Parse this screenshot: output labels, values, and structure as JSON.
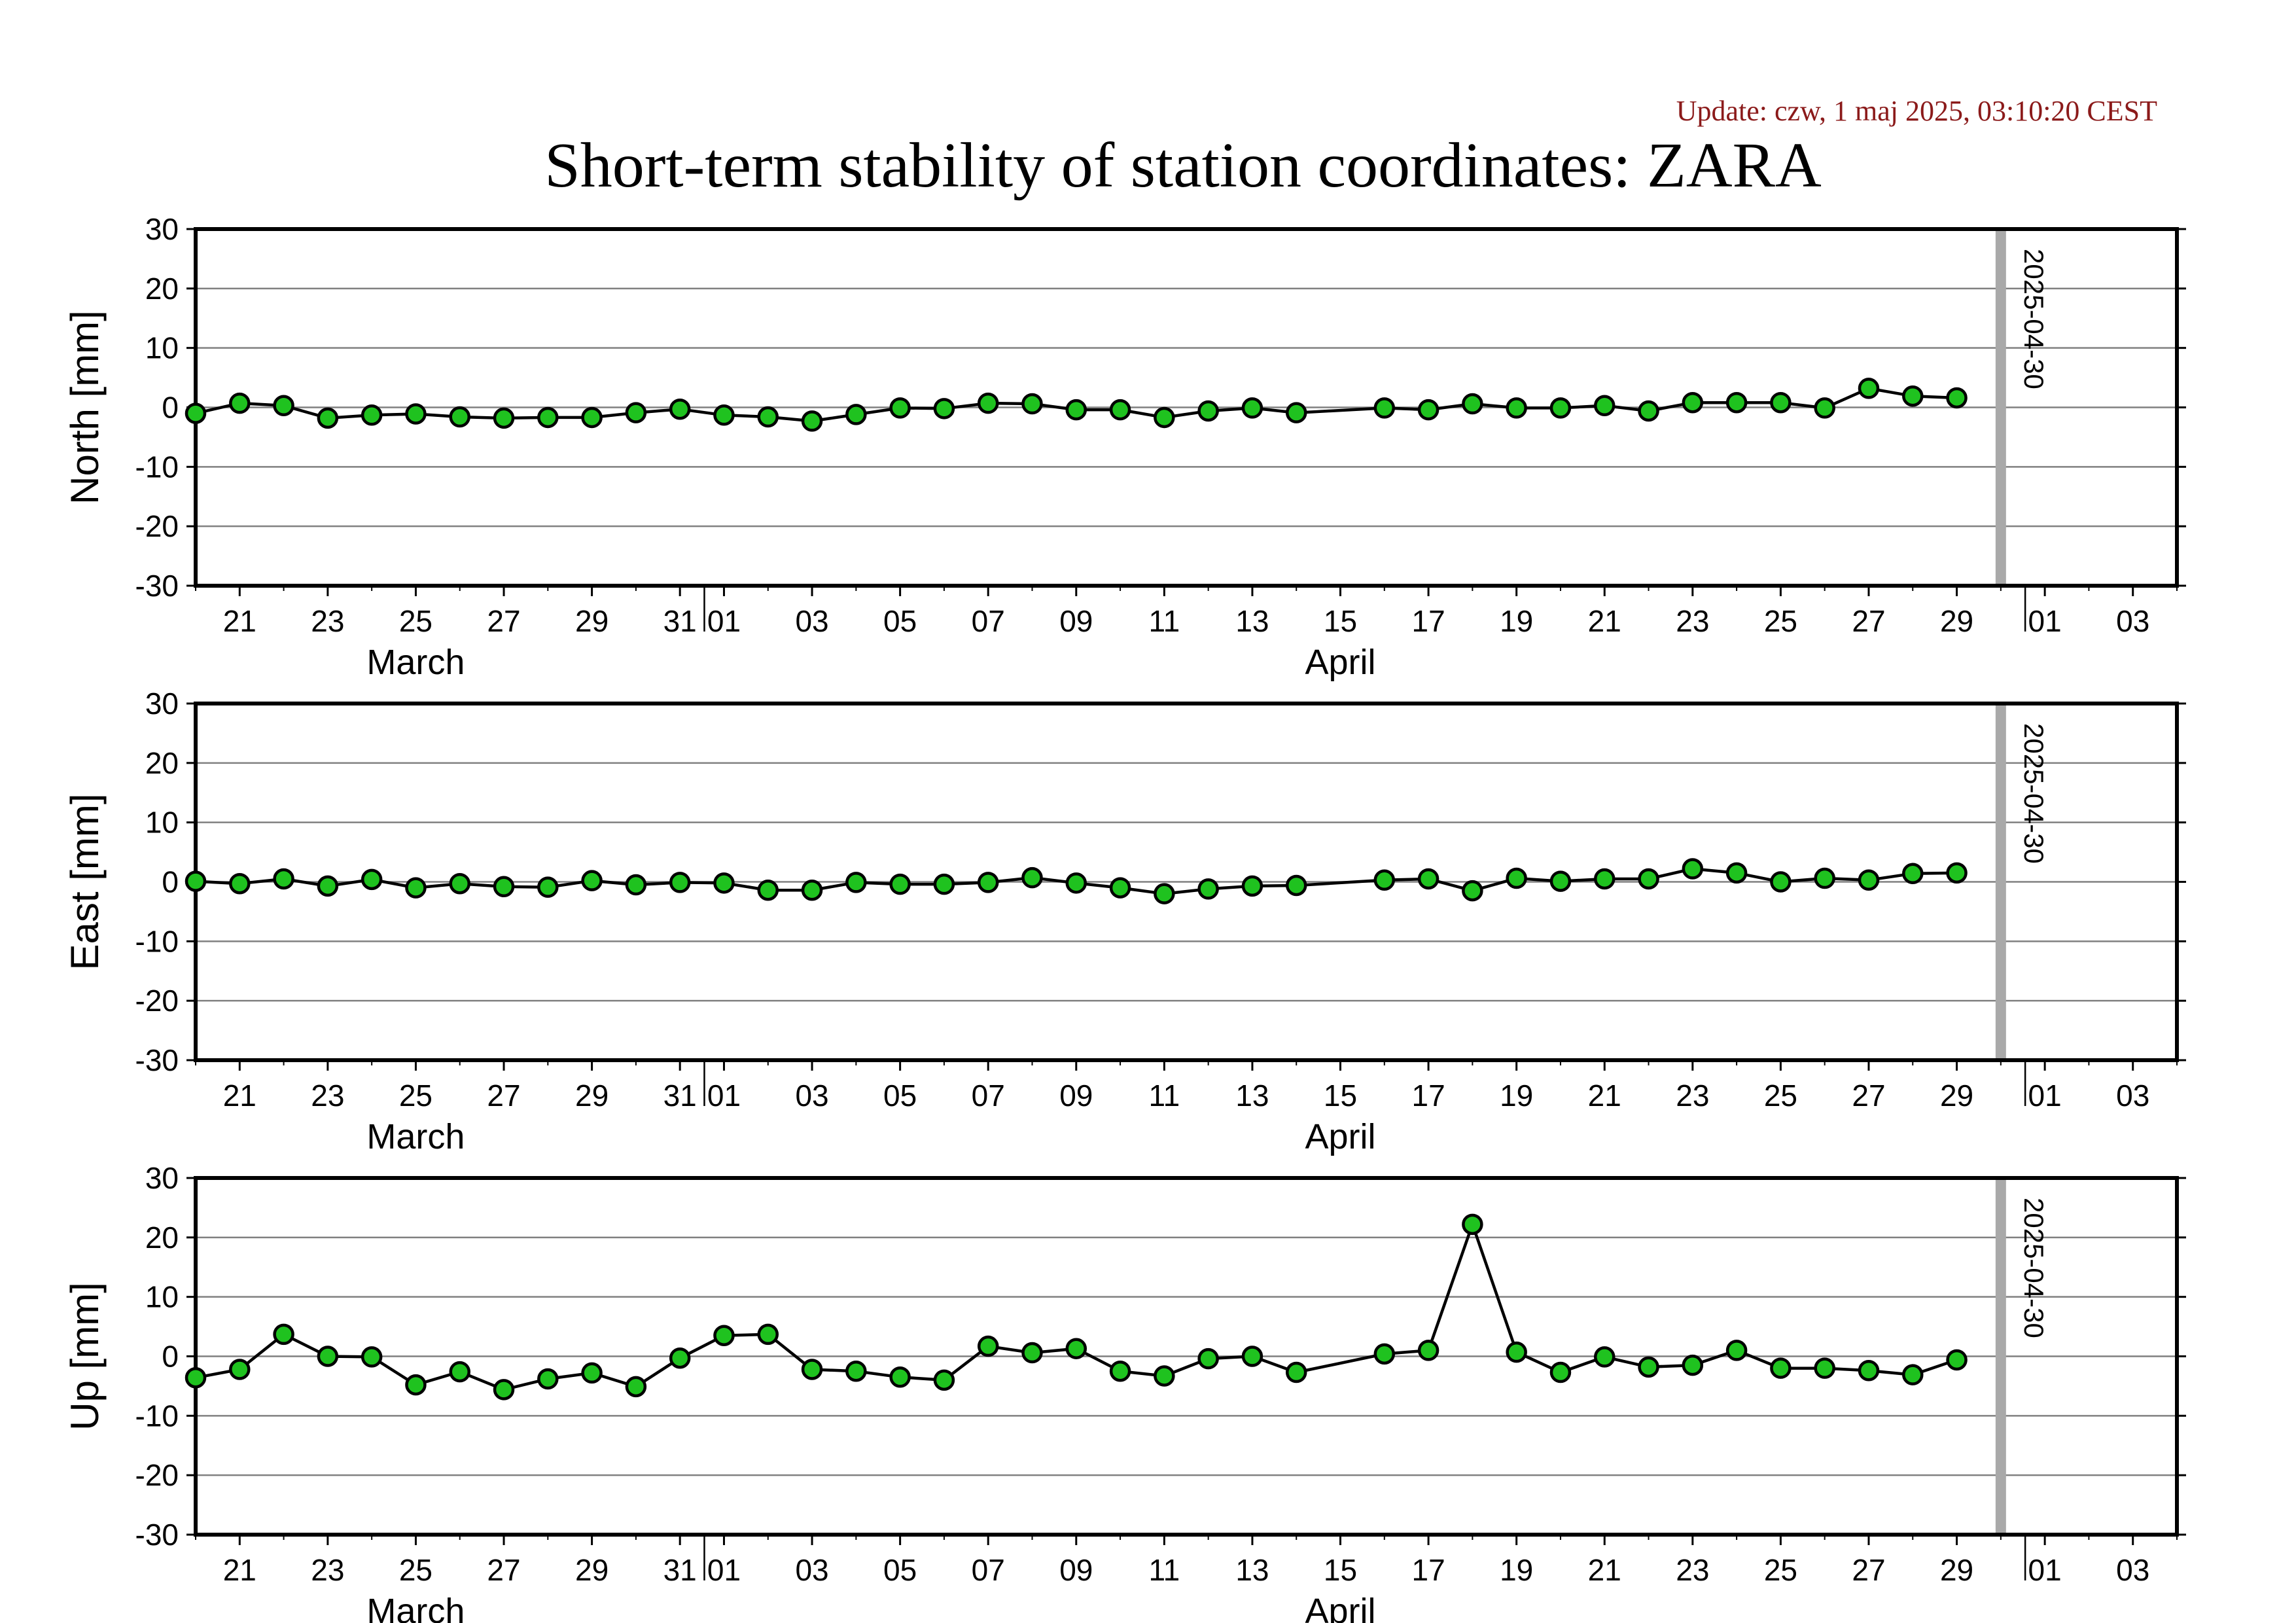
{
  "update_text": "Update: czw, 1 maj 2025, 03:10:20 CEST",
  "title": "Short-term stability of station coordinates: ZARA",
  "colors": {
    "update_text": "#8b1a1a",
    "marker_fill": "#1fc21f",
    "marker_stroke": "#000000",
    "line": "#000000",
    "grid": "#808080",
    "today_line": "#a9a9a9",
    "frame": "#000000"
  },
  "chart_data": [
    {
      "type": "line",
      "panel": "north",
      "ylabel": "North [mm]",
      "ylim": [
        -30,
        30
      ],
      "yticks": [
        30,
        20,
        10,
        0,
        -10,
        -20,
        -30
      ],
      "xlim": [
        "2025-03-20",
        "2025-05-04"
      ],
      "x_tick_labels": [
        {
          "date": "2025-03-21",
          "label": "21"
        },
        {
          "date": "2025-03-23",
          "label": "23"
        },
        {
          "date": "2025-03-25",
          "label": "25"
        },
        {
          "date": "2025-03-27",
          "label": "27"
        },
        {
          "date": "2025-03-29",
          "label": "29"
        },
        {
          "date": "2025-03-31",
          "label": "31"
        },
        {
          "date": "2025-04-01",
          "label": "01"
        },
        {
          "date": "2025-04-03",
          "label": "03"
        },
        {
          "date": "2025-04-05",
          "label": "05"
        },
        {
          "date": "2025-04-07",
          "label": "07"
        },
        {
          "date": "2025-04-09",
          "label": "09"
        },
        {
          "date": "2025-04-11",
          "label": "11"
        },
        {
          "date": "2025-04-13",
          "label": "13"
        },
        {
          "date": "2025-04-15",
          "label": "15"
        },
        {
          "date": "2025-04-17",
          "label": "17"
        },
        {
          "date": "2025-04-19",
          "label": "19"
        },
        {
          "date": "2025-04-21",
          "label": "21"
        },
        {
          "date": "2025-04-23",
          "label": "23"
        },
        {
          "date": "2025-04-25",
          "label": "25"
        },
        {
          "date": "2025-04-27",
          "label": "27"
        },
        {
          "date": "2025-04-29",
          "label": "29"
        },
        {
          "date": "2025-05-01",
          "label": "01"
        },
        {
          "date": "2025-05-03",
          "label": "03"
        }
      ],
      "month_labels": [
        {
          "date": "2025-03-25",
          "label": "March"
        },
        {
          "date": "2025-04-15",
          "label": "April"
        }
      ],
      "month_boundaries": [
        "2025-04-01",
        "2025-05-01"
      ],
      "today": {
        "date": "2025-04-30",
        "label": "2025-04-30"
      },
      "series": [
        {
          "x": [
            "2025-03-20",
            "2025-03-21",
            "2025-03-22",
            "2025-03-23",
            "2025-03-24",
            "2025-03-25",
            "2025-03-26",
            "2025-03-27",
            "2025-03-28",
            "2025-03-29",
            "2025-03-30",
            "2025-03-31",
            "2025-04-01",
            "2025-04-02",
            "2025-04-03",
            "2025-04-04",
            "2025-04-05",
            "2025-04-06",
            "2025-04-07",
            "2025-04-08",
            "2025-04-09",
            "2025-04-10",
            "2025-04-11",
            "2025-04-12",
            "2025-04-13",
            "2025-04-14",
            "2025-04-16",
            "2025-04-17",
            "2025-04-18",
            "2025-04-19",
            "2025-04-20",
            "2025-04-21",
            "2025-04-22",
            "2025-04-23",
            "2025-04-24",
            "2025-04-25",
            "2025-04-26",
            "2025-04-27",
            "2025-04-28",
            "2025-04-29"
          ],
          "y": [
            -1,
            0.7,
            0.3,
            -1.8,
            -1.3,
            -1.1,
            -1.6,
            -1.8,
            -1.7,
            -1.7,
            -0.9,
            -0.3,
            -1.3,
            -1.6,
            -2.3,
            -1.2,
            -0.1,
            -0.2,
            0.7,
            0.6,
            -0.4,
            -0.4,
            -1.7,
            -0.6,
            -0.1,
            -0.9,
            -0.1,
            -0.4,
            0.6,
            -0.1,
            -0.1,
            0.3,
            -0.6,
            0.8,
            0.8,
            0.8,
            -0.1,
            3.2,
            1.9,
            1.6
          ]
        }
      ]
    },
    {
      "type": "line",
      "panel": "east",
      "ylabel": "East [mm]",
      "ylim": [
        -30,
        30
      ],
      "yticks": [
        30,
        20,
        10,
        0,
        -10,
        -20,
        -30
      ],
      "xlim": [
        "2025-03-20",
        "2025-05-04"
      ],
      "x_tick_labels": [
        {
          "date": "2025-03-21",
          "label": "21"
        },
        {
          "date": "2025-03-23",
          "label": "23"
        },
        {
          "date": "2025-03-25",
          "label": "25"
        },
        {
          "date": "2025-03-27",
          "label": "27"
        },
        {
          "date": "2025-03-29",
          "label": "29"
        },
        {
          "date": "2025-03-31",
          "label": "31"
        },
        {
          "date": "2025-04-01",
          "label": "01"
        },
        {
          "date": "2025-04-03",
          "label": "03"
        },
        {
          "date": "2025-04-05",
          "label": "05"
        },
        {
          "date": "2025-04-07",
          "label": "07"
        },
        {
          "date": "2025-04-09",
          "label": "09"
        },
        {
          "date": "2025-04-11",
          "label": "11"
        },
        {
          "date": "2025-04-13",
          "label": "13"
        },
        {
          "date": "2025-04-15",
          "label": "15"
        },
        {
          "date": "2025-04-17",
          "label": "17"
        },
        {
          "date": "2025-04-19",
          "label": "19"
        },
        {
          "date": "2025-04-21",
          "label": "21"
        },
        {
          "date": "2025-04-23",
          "label": "23"
        },
        {
          "date": "2025-04-25",
          "label": "25"
        },
        {
          "date": "2025-04-27",
          "label": "27"
        },
        {
          "date": "2025-04-29",
          "label": "29"
        },
        {
          "date": "2025-05-01",
          "label": "01"
        },
        {
          "date": "2025-05-03",
          "label": "03"
        }
      ],
      "month_labels": [
        {
          "date": "2025-03-25",
          "label": "March"
        },
        {
          "date": "2025-04-15",
          "label": "April"
        }
      ],
      "month_boundaries": [
        "2025-04-01",
        "2025-05-01"
      ],
      "today": {
        "date": "2025-04-30",
        "label": "2025-04-30"
      },
      "series": [
        {
          "x": [
            "2025-03-20",
            "2025-03-21",
            "2025-03-22",
            "2025-03-23",
            "2025-03-24",
            "2025-03-25",
            "2025-03-26",
            "2025-03-27",
            "2025-03-28",
            "2025-03-29",
            "2025-03-30",
            "2025-03-31",
            "2025-04-01",
            "2025-04-02",
            "2025-04-03",
            "2025-04-04",
            "2025-04-05",
            "2025-04-06",
            "2025-04-07",
            "2025-04-08",
            "2025-04-09",
            "2025-04-10",
            "2025-04-11",
            "2025-04-12",
            "2025-04-13",
            "2025-04-14",
            "2025-04-16",
            "2025-04-17",
            "2025-04-18",
            "2025-04-19",
            "2025-04-20",
            "2025-04-21",
            "2025-04-22",
            "2025-04-23",
            "2025-04-24",
            "2025-04-25",
            "2025-04-26",
            "2025-04-27",
            "2025-04-28",
            "2025-04-29"
          ],
          "y": [
            0.1,
            -0.3,
            0.5,
            -0.7,
            0.4,
            -1.0,
            -0.3,
            -0.8,
            -0.9,
            0.2,
            -0.5,
            -0.1,
            -0.2,
            -1.4,
            -1.4,
            -0.1,
            -0.4,
            -0.4,
            -0.1,
            0.7,
            -0.2,
            -1.0,
            -2.0,
            -1.2,
            -0.7,
            -0.6,
            0.3,
            0.5,
            -1.5,
            0.6,
            0.1,
            0.5,
            0.5,
            2.2,
            1.5,
            0.0,
            0.6,
            0.3,
            1.4,
            1.5
          ]
        }
      ]
    },
    {
      "type": "line",
      "panel": "up",
      "ylabel": "Up [mm]",
      "ylim": [
        -30,
        30
      ],
      "yticks": [
        30,
        20,
        10,
        0,
        -10,
        -20,
        -30
      ],
      "xlim": [
        "2025-03-20",
        "2025-05-04"
      ],
      "x_tick_labels": [
        {
          "date": "2025-03-21",
          "label": "21"
        },
        {
          "date": "2025-03-23",
          "label": "23"
        },
        {
          "date": "2025-03-25",
          "label": "25"
        },
        {
          "date": "2025-03-27",
          "label": "27"
        },
        {
          "date": "2025-03-29",
          "label": "29"
        },
        {
          "date": "2025-03-31",
          "label": "31"
        },
        {
          "date": "2025-04-01",
          "label": "01"
        },
        {
          "date": "2025-04-03",
          "label": "03"
        },
        {
          "date": "2025-04-05",
          "label": "05"
        },
        {
          "date": "2025-04-07",
          "label": "07"
        },
        {
          "date": "2025-04-09",
          "label": "09"
        },
        {
          "date": "2025-04-11",
          "label": "11"
        },
        {
          "date": "2025-04-13",
          "label": "13"
        },
        {
          "date": "2025-04-15",
          "label": "15"
        },
        {
          "date": "2025-04-17",
          "label": "17"
        },
        {
          "date": "2025-04-19",
          "label": "19"
        },
        {
          "date": "2025-04-21",
          "label": "21"
        },
        {
          "date": "2025-04-23",
          "label": "23"
        },
        {
          "date": "2025-04-25",
          "label": "25"
        },
        {
          "date": "2025-04-27",
          "label": "27"
        },
        {
          "date": "2025-04-29",
          "label": "29"
        },
        {
          "date": "2025-05-01",
          "label": "01"
        },
        {
          "date": "2025-05-03",
          "label": "03"
        }
      ],
      "month_labels": [
        {
          "date": "2025-03-25",
          "label": "March"
        },
        {
          "date": "2025-04-15",
          "label": "April"
        }
      ],
      "month_boundaries": [
        "2025-04-01",
        "2025-05-01"
      ],
      "today": {
        "date": "2025-04-30",
        "label": "2025-04-30"
      },
      "series": [
        {
          "x": [
            "2025-03-20",
            "2025-03-21",
            "2025-03-22",
            "2025-03-23",
            "2025-03-24",
            "2025-03-25",
            "2025-03-26",
            "2025-03-27",
            "2025-03-28",
            "2025-03-29",
            "2025-03-30",
            "2025-03-31",
            "2025-04-01",
            "2025-04-02",
            "2025-04-03",
            "2025-04-04",
            "2025-04-05",
            "2025-04-06",
            "2025-04-07",
            "2025-04-08",
            "2025-04-09",
            "2025-04-10",
            "2025-04-11",
            "2025-04-12",
            "2025-04-13",
            "2025-04-14",
            "2025-04-16",
            "2025-04-17",
            "2025-04-18",
            "2025-04-19",
            "2025-04-20",
            "2025-04-21",
            "2025-04-22",
            "2025-04-23",
            "2025-04-24",
            "2025-04-25",
            "2025-04-26",
            "2025-04-27",
            "2025-04-28",
            "2025-04-29"
          ],
          "y": [
            -3.6,
            -2.2,
            3.7,
            0.0,
            -0.1,
            -4.8,
            -2.6,
            -5.6,
            -3.8,
            -2.8,
            -5.1,
            -0.3,
            3.5,
            3.7,
            -2.2,
            -2.5,
            -3.5,
            -4.0,
            1.7,
            0.6,
            1.3,
            -2.5,
            -3.3,
            -0.4,
            0.0,
            -2.7,
            0.4,
            1.0,
            22.2,
            0.7,
            -2.7,
            -0.1,
            -1.8,
            -1.5,
            1.0,
            -2.0,
            -2.0,
            -2.4,
            -3.1,
            -0.6
          ]
        }
      ]
    }
  ]
}
